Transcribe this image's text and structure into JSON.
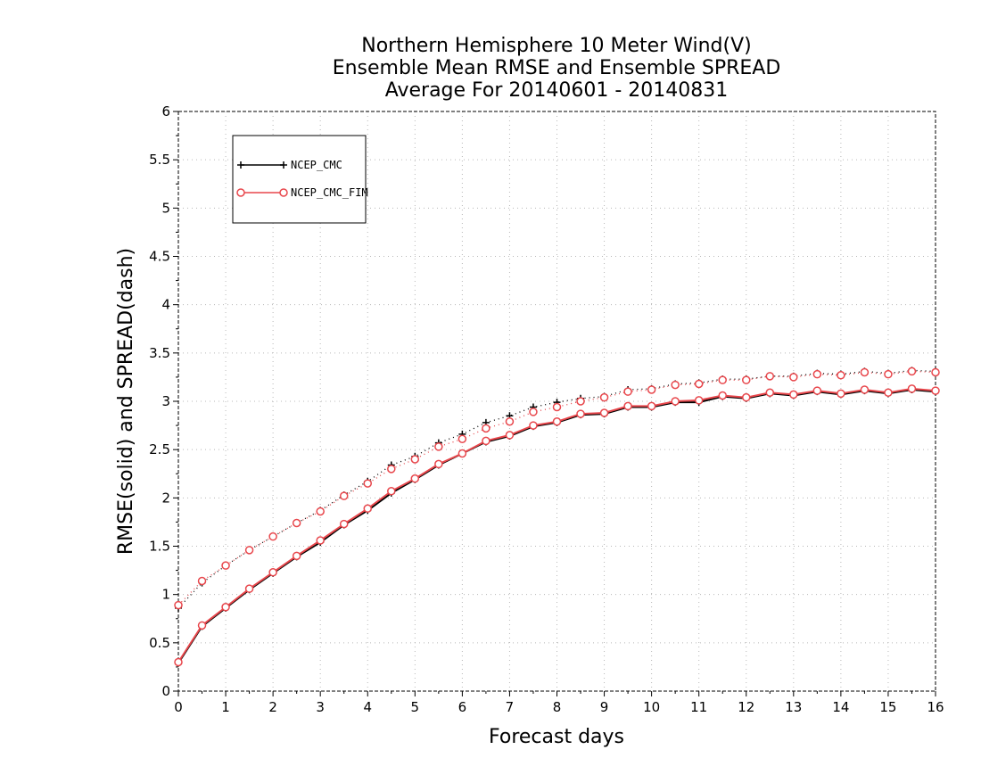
{
  "chart_data": {
    "type": "line",
    "title": [
      "Northern Hemisphere 10 Meter Wind(V)",
      "Ensemble Mean RMSE and Ensemble SPREAD",
      "Average For 20140601 - 20140831"
    ],
    "xlabel": "Forecast days",
    "ylabel": "RMSE(solid) and SPREAD(dash)",
    "xlim": [
      0,
      16
    ],
    "ylim": [
      0,
      6
    ],
    "xticks": [
      0,
      1,
      2,
      3,
      4,
      5,
      6,
      7,
      8,
      9,
      10,
      11,
      12,
      13,
      14,
      15,
      16
    ],
    "yticks": [
      "0",
      "0.5",
      "1",
      "1.5",
      "2",
      "2.5",
      "3",
      "3.5",
      "4",
      "4.5",
      "5",
      "5.5",
      "6"
    ],
    "grid": true,
    "legend_position": "top-left",
    "x": [
      0,
      0.5,
      1,
      1.5,
      2,
      2.5,
      3,
      3.5,
      4,
      4.5,
      5,
      5.5,
      6,
      6.5,
      7,
      7.5,
      8,
      8.5,
      9,
      9.5,
      10,
      10.5,
      11,
      11.5,
      12,
      12.5,
      13,
      13.5,
      14,
      14.5,
      15,
      15.5,
      16
    ],
    "series": [
      {
        "name": "NCEP_CMC",
        "color": "#000000",
        "marker": "plus",
        "rmse": [
          0.29,
          0.67,
          0.86,
          1.05,
          1.22,
          1.39,
          1.54,
          1.72,
          1.87,
          2.05,
          2.19,
          2.34,
          2.46,
          2.58,
          2.64,
          2.74,
          2.78,
          2.86,
          2.87,
          2.94,
          2.94,
          2.99,
          2.99,
          3.05,
          3.03,
          3.08,
          3.06,
          3.1,
          3.07,
          3.11,
          3.08,
          3.12,
          3.1
        ],
        "spread": [
          0.86,
          1.12,
          1.3,
          1.46,
          1.6,
          1.74,
          1.87,
          2.03,
          2.17,
          2.34,
          2.43,
          2.57,
          2.66,
          2.78,
          2.85,
          2.94,
          2.99,
          3.03,
          3.05,
          3.12,
          3.13,
          3.18,
          3.19,
          3.23,
          3.23,
          3.26,
          3.26,
          3.29,
          3.28,
          3.31,
          3.29,
          3.32,
          3.31
        ]
      },
      {
        "name": "NCEP_CMC_FIM",
        "color": "#e8474c",
        "marker": "circle",
        "rmse": [
          0.3,
          0.68,
          0.87,
          1.06,
          1.23,
          1.4,
          1.56,
          1.73,
          1.89,
          2.07,
          2.2,
          2.35,
          2.46,
          2.59,
          2.65,
          2.75,
          2.79,
          2.87,
          2.88,
          2.95,
          2.95,
          3.0,
          3.01,
          3.06,
          3.04,
          3.09,
          3.07,
          3.11,
          3.08,
          3.12,
          3.09,
          3.13,
          3.11
        ],
        "spread": [
          0.89,
          1.14,
          1.3,
          1.46,
          1.6,
          1.74,
          1.86,
          2.02,
          2.15,
          2.3,
          2.4,
          2.53,
          2.61,
          2.72,
          2.79,
          2.89,
          2.94,
          3.0,
          3.04,
          3.1,
          3.12,
          3.17,
          3.18,
          3.22,
          3.22,
          3.26,
          3.25,
          3.28,
          3.27,
          3.3,
          3.28,
          3.31,
          3.3
        ]
      }
    ]
  }
}
